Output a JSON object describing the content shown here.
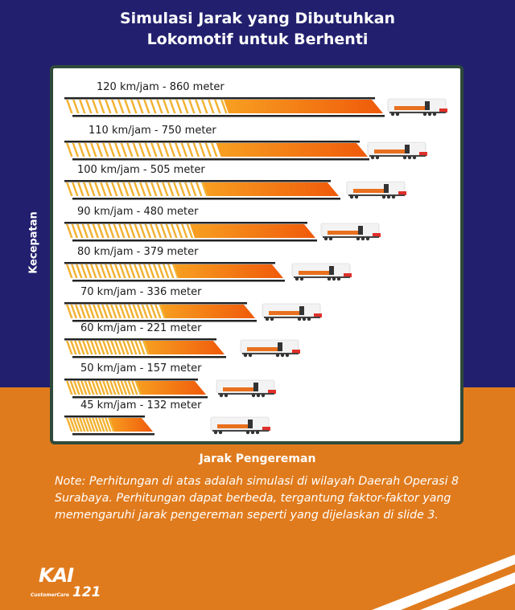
{
  "title_lines": [
    "Simulasi Jarak yang Dibutuhkan",
    "Lokomotif untuk Berhenti"
  ],
  "chart_data": {
    "type": "bar",
    "orientation": "horizontal",
    "title": "Simulasi Jarak yang Dibutuhkan Lokomotif untuk Berhenti",
    "xlabel": "Jarak Pengereman",
    "ylabel": "Kecepatan",
    "categories": [
      "120 km/jam",
      "110 km/jam",
      "100 km/jam",
      "90 km/jam",
      "80 km/jam",
      "70 km/jam",
      "60 km/jam",
      "50 km/jam",
      "45 km/jam"
    ],
    "series": [
      {
        "name": "Jarak pengereman (meter)",
        "speeds_kmh": [
          120,
          110,
          100,
          90,
          80,
          70,
          60,
          50,
          45
        ],
        "values": [
          860,
          750,
          505,
          480,
          379,
          336,
          221,
          157,
          132
        ]
      }
    ],
    "bar_labels": [
      "120 km/jam - 860 meter",
      "110 km/jam - 750 meter",
      "100 km/jam - 505 meter",
      "90 km/jam - 480 meter",
      "80 km/jam - 379 meter",
      "70 km/jam - 336 meter",
      "60 km/jam - 221 meter",
      "50 km/jam - 157 meter",
      "45 km/jam - 132 meter"
    ],
    "marker_icon": "locomotive-icon",
    "grid": false,
    "legend": "none"
  },
  "axis": {
    "x_label": "Jarak Pengereman",
    "y_label": "Kecepatan"
  },
  "note": "Note: Perhitungan di atas adalah simulasi di wilayah Daerah Operasi 8 Surabaya. Perhitungan dapat berbeda, tergantung faktor-faktor yang memengaruhi jarak pengereman seperti yang dijelaskan di slide 3.",
  "logo": {
    "brand": "KAI",
    "subtitle": "CustomerCare",
    "number": "121"
  },
  "colors": {
    "background_top": "#22206e",
    "background_bottom": "#e07b1d",
    "panel_border": "#2f4a3a",
    "bar_stripe": "#f2b233",
    "bar_fill_start": "#f7a021",
    "bar_fill_end": "#f05a0a",
    "bar_rail": "#222222",
    "loco_body": "#f3f3f3",
    "loco_stripe": "#e8701e",
    "loco_nose": "#e0302a"
  }
}
